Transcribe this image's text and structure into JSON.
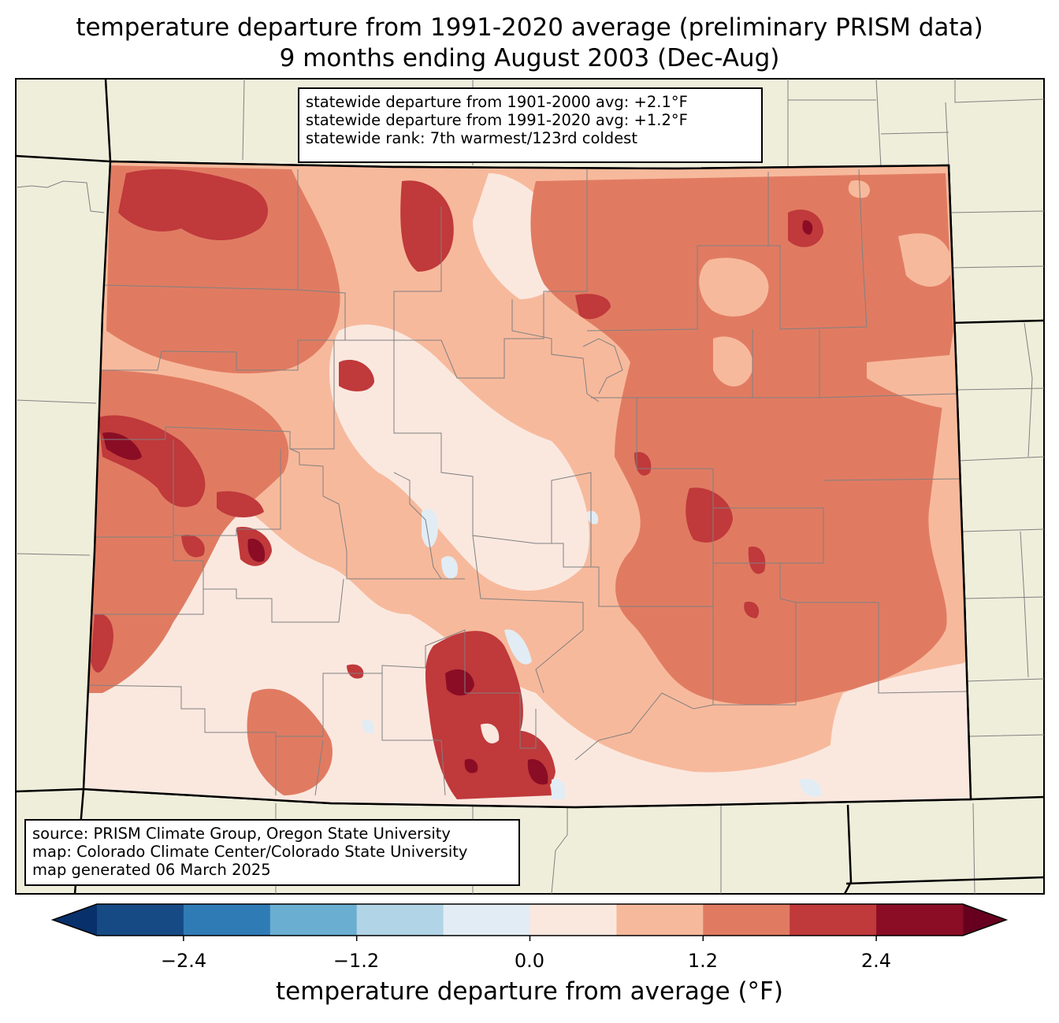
{
  "title": {
    "line1": "temperature departure from 1991-2020 average (preliminary PRISM data)",
    "line2": "9 months ending August 2003 (Dec-Aug)"
  },
  "stats": {
    "line1": "statewide departure from 1901-2000 avg: +2.1°F",
    "line2": "statewide departure from 1991-2020 avg: +1.2°F",
    "line3": "statewide rank: 7th warmest/123rd coldest"
  },
  "source": {
    "line1": "source: PRISM Climate Group, Oregon State University",
    "line2": "map: Colorado Climate Center/Colorado State University",
    "line3": "map generated 06 March 2025"
  },
  "colorbar": {
    "label": "temperature departure from average (°F)",
    "ticks": [
      "−2.4",
      "−1.2",
      "0.0",
      "1.2",
      "2.4"
    ],
    "bins": [
      {
        "min": -3.6,
        "max": -3.0,
        "color": "#08306b"
      },
      {
        "min": -3.0,
        "max": -2.4,
        "color": "#164a85"
      },
      {
        "min": -2.4,
        "max": -1.8,
        "color": "#2f7bb6"
      },
      {
        "min": -1.8,
        "max": -1.2,
        "color": "#6aaed2"
      },
      {
        "min": -1.2,
        "max": -0.6,
        "color": "#b1d4e6"
      },
      {
        "min": -0.6,
        "max": 0.0,
        "color": "#e2ecf4"
      },
      {
        "min": 0.0,
        "max": 0.6,
        "color": "#fae8df"
      },
      {
        "min": 0.6,
        "max": 1.2,
        "color": "#f7b99c"
      },
      {
        "min": 1.2,
        "max": 1.8,
        "color": "#e07b62"
      },
      {
        "min": 1.8,
        "max": 2.4,
        "color": "#c0393b"
      },
      {
        "min": 2.4,
        "max": 3.0,
        "color": "#8a0d25"
      },
      {
        "min": 3.0,
        "max": 3.6,
        "color": "#67001f"
      }
    ]
  },
  "colors": {
    "land": "#efeedb",
    "border": "#000000",
    "county_line": "#808080"
  }
}
